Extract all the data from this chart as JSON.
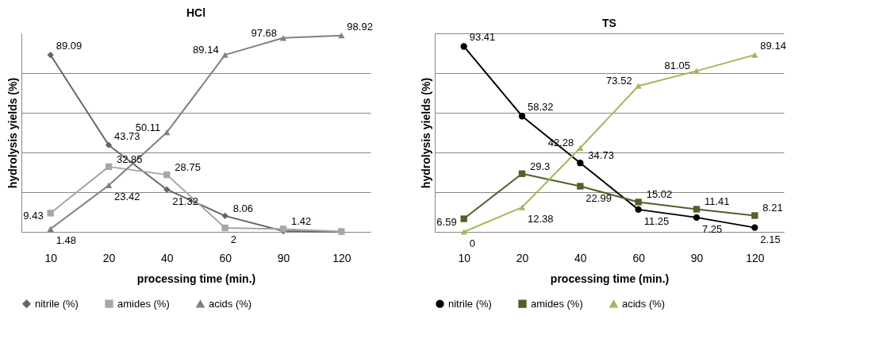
{
  "chart_data": [
    {
      "type": "line",
      "title": "HCl",
      "xlabel": "processing time (min.)",
      "ylabel": "hydrolysis yields (%)",
      "categories": [
        "10",
        "20",
        "40",
        "60",
        "90",
        "120"
      ],
      "ylim": [
        0,
        100
      ],
      "yticks": [
        {
          "value": 0,
          "label": null
        },
        {
          "value": 20,
          "label": null
        },
        {
          "value": 40,
          "label": null
        },
        {
          "value": 60,
          "label": null
        },
        {
          "value": 80,
          "label": null
        }
      ],
      "grid": "y",
      "tick_labels": "x",
      "legend": "bottom",
      "line_style": "solid",
      "series": [
        {
          "name": "nitrile (%)",
          "color": "#666666",
          "marker": "diamond",
          "values": [
            89.09,
            43.73,
            21.32,
            8.06,
            0.4,
            0
          ],
          "value_labels": [
            "89.09",
            "43.73",
            "21.32",
            "8.06",
            null,
            null
          ]
        },
        {
          "name": "amides (%)",
          "color": "#a6a6a6",
          "marker": "square",
          "values": [
            9.43,
            32.85,
            28.75,
            2,
            1.42,
            0.2
          ],
          "value_labels": [
            "9.43",
            "32.85",
            "28.75",
            "2",
            "1.42",
            null
          ]
        },
        {
          "name": "acids (%)",
          "color": "#808080",
          "marker": "triangle",
          "values": [
            1.48,
            23.42,
            50.11,
            89.14,
            97.68,
            98.92
          ],
          "value_labels": [
            "1.48",
            "23.42",
            "50.11",
            "89.14",
            "97.68",
            "98.92"
          ]
        }
      ]
    },
    {
      "type": "line",
      "title": "TS",
      "xlabel": "processing time (min.)",
      "ylabel": "hydrolysis yields (%)",
      "categories": [
        "10",
        "20",
        "40",
        "60",
        "90",
        "120"
      ],
      "ylim": [
        0,
        100
      ],
      "yticks": [
        {
          "value": 0,
          "label": null
        },
        {
          "value": 20,
          "label": null
        },
        {
          "value": 40,
          "label": null
        },
        {
          "value": 60,
          "label": null
        },
        {
          "value": 80,
          "label": null
        },
        {
          "value": 100,
          "label": null
        }
      ],
      "grid": "y",
      "tick_labels": "x",
      "legend": "bottom",
      "line_style": "solid",
      "series": [
        {
          "name": "nitrile (%)",
          "color": "#000000",
          "marker": "circle",
          "values": [
            93.41,
            58.32,
            34.73,
            11.25,
            7.25,
            2.15
          ],
          "value_labels": [
            "93.41",
            "58.32",
            "34.73",
            "11.25",
            "7.25",
            "2.15"
          ]
        },
        {
          "name": "amides (%)",
          "color": "#4f6228",
          "marker": "square",
          "values": [
            6.59,
            29.3,
            22.99,
            15.02,
            11.41,
            8.21
          ],
          "value_labels": [
            "6.59",
            "29.3",
            "22.99",
            "15.02",
            "11.41",
            "8.21"
          ]
        },
        {
          "name": "acids (%)",
          "color": "#9bbb59",
          "marker": "triangle",
          "values": [
            0,
            12.38,
            42.28,
            73.52,
            81.05,
            89.14
          ],
          "value_labels": [
            "0",
            "12.38",
            "42.28",
            "73.52",
            "81.05",
            "89.14"
          ]
        }
      ]
    }
  ]
}
